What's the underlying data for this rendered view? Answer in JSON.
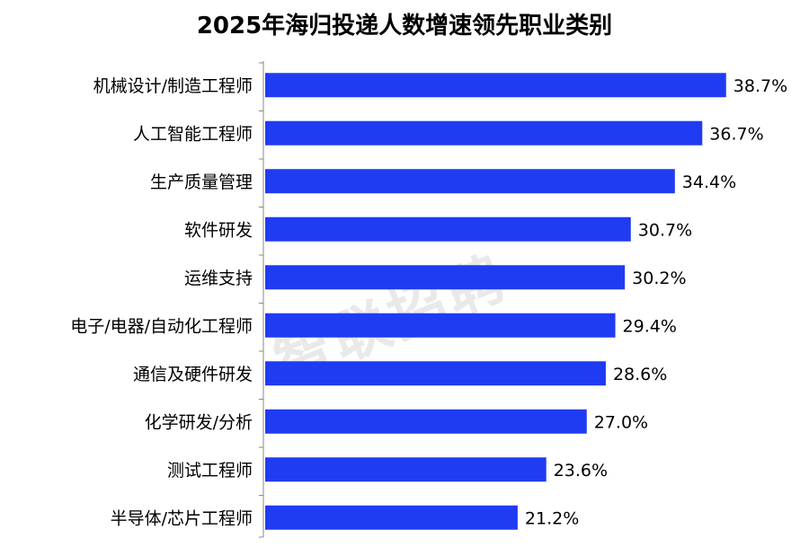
{
  "chart_data": {
    "type": "bar",
    "orientation": "horizontal",
    "title": "2025年海归投递人数增速领先职业类别",
    "categories": [
      "机械设计/制造工程师",
      "人工智能工程师",
      "生产质量管理",
      "软件研发",
      "运维支持",
      "电子/电器/自动化工程师",
      "通信及硬件研发",
      "化学研发/分析",
      "测试工程师",
      "半导体/芯片工程师"
    ],
    "values": [
      38.7,
      36.7,
      34.4,
      30.7,
      30.2,
      29.4,
      28.6,
      27.0,
      23.6,
      21.2
    ],
    "value_labels": [
      "38.7%",
      "36.7%",
      "34.4%",
      "30.7%",
      "30.2%",
      "29.4%",
      "28.6%",
      "27.0%",
      "23.6%",
      "21.2%"
    ],
    "xlim": [
      0,
      40
    ],
    "bar_color": "#1f3cf2",
    "grid": false,
    "legend": "none"
  },
  "watermark": "智联招聘"
}
